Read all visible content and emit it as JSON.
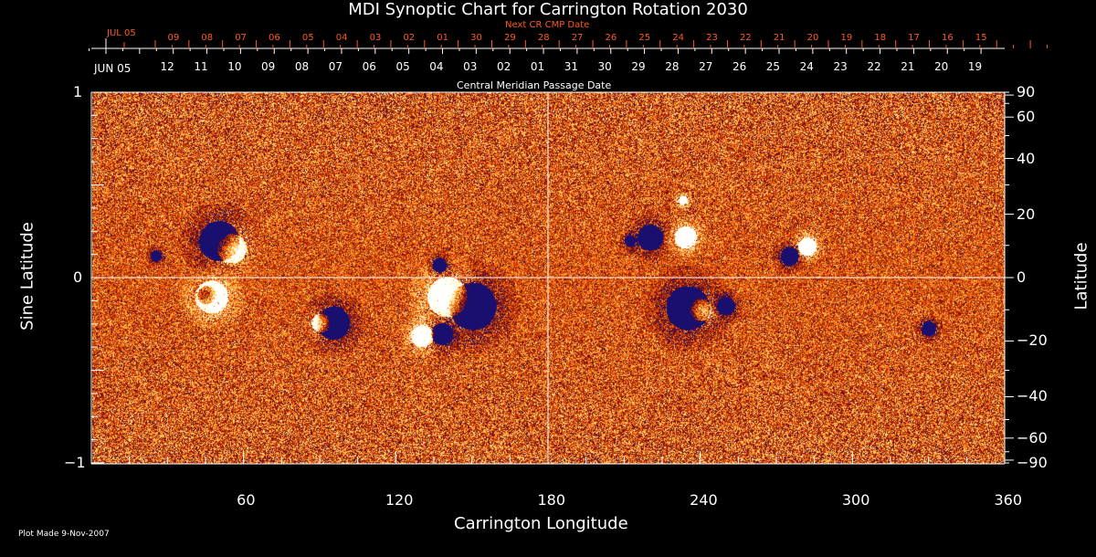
{
  "chart_data": {
    "type": "heatmap",
    "title": "MDI Synoptic Chart for Carrington Rotation 2030",
    "xlabel": "Carrington Longitude",
    "ylabel": "Sine Latitude",
    "ylabel_right": "Latitude",
    "xlim": [
      0,
      360
    ],
    "ylim": [
      -1,
      1
    ],
    "x_ticks": [
      "60",
      "120",
      "180",
      "240",
      "300",
      "360"
    ],
    "y_ticks_left": [
      "1",
      "0",
      "-1"
    ],
    "y_ticks_right": [
      "90",
      "60",
      "40",
      "20",
      "0",
      "-20",
      "-40",
      "-60",
      "-90"
    ],
    "top_axis_label": "Central Meridian Passage Date",
    "top_axis_month": "JUN 05",
    "top_axis_dates": [
      "12",
      "11",
      "10",
      "09",
      "08",
      "07",
      "06",
      "05",
      "04",
      "03",
      "02",
      "01",
      "31",
      "30",
      "29",
      "28",
      "27",
      "26",
      "25",
      "24",
      "23",
      "22",
      "21",
      "20",
      "19"
    ],
    "next_axis_label": "Next CR CMP Date",
    "next_axis_month": "JUL 05",
    "next_axis_dates": [
      "09",
      "08",
      "07",
      "06",
      "05",
      "04",
      "03",
      "02",
      "01",
      "30",
      "29",
      "28",
      "27",
      "26",
      "25",
      "24",
      "23",
      "22",
      "21",
      "20",
      "19",
      "18",
      "17",
      "16",
      "15"
    ],
    "colormap": [
      "#1a1070",
      "#b01000",
      "#ff4400",
      "#ffa030",
      "#ffffc0",
      "#ffffff"
    ],
    "grid": "lines at longitude 180 and latitude 0"
  },
  "footer": "Plot Made  9-Nov-2007"
}
